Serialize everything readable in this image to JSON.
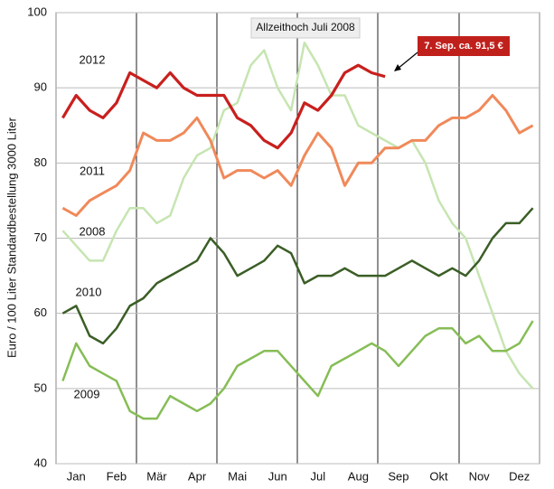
{
  "chart_data": {
    "type": "line",
    "y_label": "Euro / 100 Liter Standardbestellung 3000 Liter",
    "annotations": [
      "Allzeithoch Juli 2008",
      "7. Sep. ca. 91,5 €"
    ],
    "categories": [
      null,
      "Jan",
      null,
      null,
      "Feb",
      null,
      null,
      "Mär",
      null,
      null,
      "Apr",
      null,
      null,
      "Mai",
      null,
      null,
      "Jun",
      null,
      null,
      "Jul",
      null,
      null,
      "Aug",
      null,
      null,
      "Sep",
      null,
      null,
      "Okt",
      null,
      null,
      "Nov",
      null,
      null,
      "Dez",
      null
    ],
    "ylim": [
      40,
      100
    ],
    "yticks": [
      40,
      50,
      60,
      70,
      80,
      90,
      100
    ],
    "grid": true,
    "series": [
      {
        "name": "2008",
        "color": "#c6e5b1",
        "values": [
          71,
          69,
          67,
          67,
          71,
          74,
          74,
          72,
          73,
          78,
          81,
          82,
          87,
          88,
          93,
          95,
          90,
          87,
          96,
          93,
          89,
          89,
          85,
          84,
          83,
          82,
          83,
          80,
          75,
          72,
          70,
          65,
          60,
          55,
          52,
          50
        ]
      },
      {
        "name": "2009",
        "color": "#86bd56",
        "values": [
          51,
          56,
          53,
          52,
          51,
          47,
          46,
          46,
          49,
          48,
          47,
          48,
          50,
          53,
          54,
          55,
          55,
          53,
          51,
          49,
          53,
          54,
          55,
          56,
          55,
          53,
          55,
          57,
          58,
          58,
          56,
          57,
          55,
          55,
          56,
          59
        ]
      },
      {
        "name": "2010",
        "color": "#3b5e26",
        "values": [
          60,
          61,
          57,
          56,
          58,
          61,
          62,
          64,
          65,
          66,
          67,
          70,
          68,
          65,
          66,
          67,
          69,
          68,
          64,
          65,
          65,
          66,
          65,
          65,
          65,
          66,
          67,
          66,
          65,
          66,
          65,
          67,
          70,
          72,
          72,
          74
        ]
      },
      {
        "name": "2011",
        "color": "#f0895a",
        "values": [
          74,
          73,
          75,
          76,
          77,
          79,
          84,
          83,
          83,
          84,
          86,
          83,
          78,
          79,
          79,
          78,
          79,
          77,
          81,
          84,
          82,
          77,
          80,
          80,
          82,
          82,
          83,
          83,
          85,
          86,
          86,
          87,
          89,
          87,
          84,
          85
        ]
      },
      {
        "name": "2012",
        "color": "#c8201e",
        "values": [
          86,
          89,
          87,
          86,
          88,
          92,
          91,
          90,
          92,
          90,
          89,
          89,
          89,
          86,
          85,
          83,
          82,
          84,
          88,
          87,
          89,
          92,
          93,
          92,
          91.5,
          null,
          null,
          null,
          null,
          null,
          null,
          null,
          null,
          null,
          null,
          null
        ]
      }
    ]
  }
}
